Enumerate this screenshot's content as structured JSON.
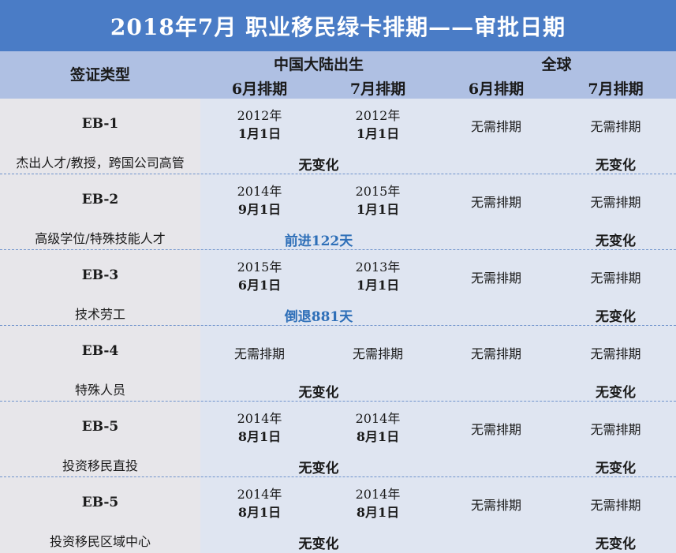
{
  "title": "2018年7月  职业移民绿卡排期——审批日期",
  "header": {
    "visa_type": "签证类型",
    "china": "中国大陆出生",
    "global": "全球",
    "cols": [
      "6月排期",
      "7月排期",
      "6月排期",
      "7月排期"
    ]
  },
  "rows": [
    {
      "name": "EB-1",
      "desc": "杰出人才/教授，跨国公司高管",
      "cn_june": {
        "year": "2012年",
        "day": "1月1日"
      },
      "cn_july": {
        "year": "2012年",
        "day": "1月1日"
      },
      "cn_june_text": "",
      "cn_july_text": "",
      "gl_june": "无需排期",
      "gl_july": "无需排期",
      "cn_change": "无变化",
      "gl_change": "无变化"
    },
    {
      "name": "EB-2",
      "desc": "高级学位/特殊技能人才",
      "cn_june": {
        "year": "2014年",
        "day": "9月1日"
      },
      "cn_july": {
        "year": "2015年",
        "day": "1月1日"
      },
      "cn_june_text": "",
      "cn_july_text": "",
      "gl_june": "无需排期",
      "gl_july": "无需排期",
      "cn_change": "前进122天",
      "gl_change": "无变化"
    },
    {
      "name": "EB-3",
      "desc": "技术劳工",
      "cn_june": {
        "year": "2015年",
        "day": "6月1日"
      },
      "cn_july": {
        "year": "2013年",
        "day": "1月1日"
      },
      "cn_june_text": "",
      "cn_july_text": "",
      "gl_june": "无需排期",
      "gl_july": "无需排期",
      "cn_change": "倒退881天",
      "gl_change": "无变化"
    },
    {
      "name": "EB-4",
      "desc": "特殊人员",
      "cn_june": {
        "year": "",
        "day": ""
      },
      "cn_july": {
        "year": "",
        "day": ""
      },
      "cn_june_text": "无需排期",
      "cn_july_text": "无需排期",
      "gl_june": "无需排期",
      "gl_july": "无需排期",
      "cn_change": "无变化",
      "gl_change": "无变化"
    },
    {
      "name": "EB-5",
      "desc": "投资移民直投",
      "cn_june": {
        "year": "2014年",
        "day": "8月1日"
      },
      "cn_july": {
        "year": "2014年",
        "day": "8月1日"
      },
      "cn_june_text": "",
      "cn_july_text": "",
      "gl_june": "无需排期",
      "gl_july": "无需排期",
      "cn_change": "无变化",
      "gl_change": "无变化"
    },
    {
      "name": "EB-5",
      "desc": "投资移民区域中心",
      "cn_june": {
        "year": "2014年",
        "day": "8月1日"
      },
      "cn_july": {
        "year": "2014年",
        "day": "8月1日"
      },
      "cn_june_text": "",
      "cn_july_text": "",
      "gl_june": "无需排期",
      "gl_july": "无需排期",
      "cn_change": "无变化",
      "gl_change": "无变化"
    }
  ],
  "colors": {
    "title_bg": "#4a7cc6",
    "header_bg": "#afc0e3",
    "body_bg": "#dfe5f1",
    "left_bg": "#e7e6ea",
    "change_highlight": "#2e6fb8"
  }
}
